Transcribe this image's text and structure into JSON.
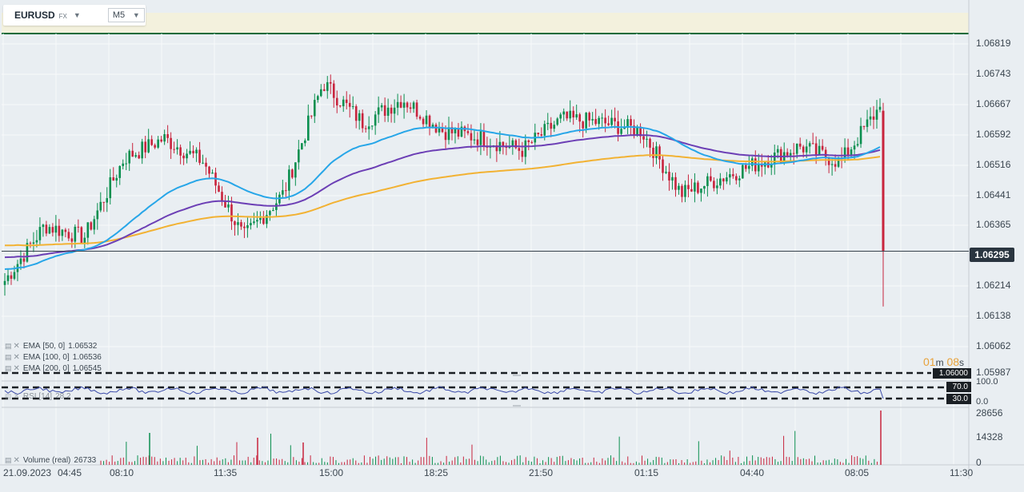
{
  "toolbar": {
    "symbol": "EURUSD",
    "symbol_type": "FX",
    "timeframe": "M5"
  },
  "price_axis": [
    "1.06819",
    "1.06743",
    "1.06667",
    "1.06592",
    "1.06516",
    "1.06441",
    "1.06365",
    "1.06214",
    "1.06138",
    "1.06062",
    "1.05987"
  ],
  "current_price": "1.06295",
  "countdown": {
    "min": "01",
    "min_unit": "m",
    "sec": "08",
    "sec_unit": "s"
  },
  "level_line": "1.06000",
  "indicators": [
    {
      "label": "EMA",
      "params": "[50,  0]",
      "value": "1.06532",
      "color": "#27a6e8"
    },
    {
      "label": "EMA",
      "params": "[100,  0]",
      "value": "1.06536",
      "color": "#6c3fb5"
    },
    {
      "label": "EMA",
      "params": "[200,  0]",
      "value": "1.06545",
      "color": "#f2b233"
    }
  ],
  "rsi": {
    "label": "RSI",
    "params": "[14]",
    "value": "28.2",
    "axis": [
      "100.0",
      "0.0"
    ],
    "upper": "70.0",
    "lower": "30.0"
  },
  "volume": {
    "label": "Volume",
    "params": "(real)",
    "value": "26733",
    "axis": [
      "28656",
      "14328",
      "0"
    ]
  },
  "time_axis": [
    "21.09.2023",
    "04:45",
    "08:10",
    "11:35",
    "15:00",
    "18:25",
    "21:50",
    "01:15",
    "04:40",
    "08:05",
    "11:30"
  ],
  "colors": {
    "up": "#0a8f4f",
    "down": "#c8243d",
    "ema50": "#27a6e8",
    "ema100": "#6c3fb5",
    "ema200": "#f2b233",
    "rsi": "#3a4aa8",
    "header_line": "#0d6b3a"
  },
  "chart_data": {
    "type": "candlestick",
    "x": [
      "21.09.2023",
      "04:45",
      "08:10",
      "11:35",
      "15:00",
      "18:25",
      "21:50",
      "01:15",
      "04:40",
      "08:05"
    ],
    "close_points": [
      1.0622,
      1.0636,
      1.0633,
      1.0653,
      1.0658,
      1.0652,
      1.0633,
      1.0644,
      1.0672,
      1.0662,
      1.0668,
      1.066,
      1.0658,
      1.0655,
      1.0663,
      1.0662,
      1.066,
      1.0644,
      1.0648,
      1.0652,
      1.0656,
      1.0652,
      1.0666,
      1.0629
    ],
    "last_price": 1.06295,
    "ylim": [
      1.05987,
      1.06819
    ]
  }
}
